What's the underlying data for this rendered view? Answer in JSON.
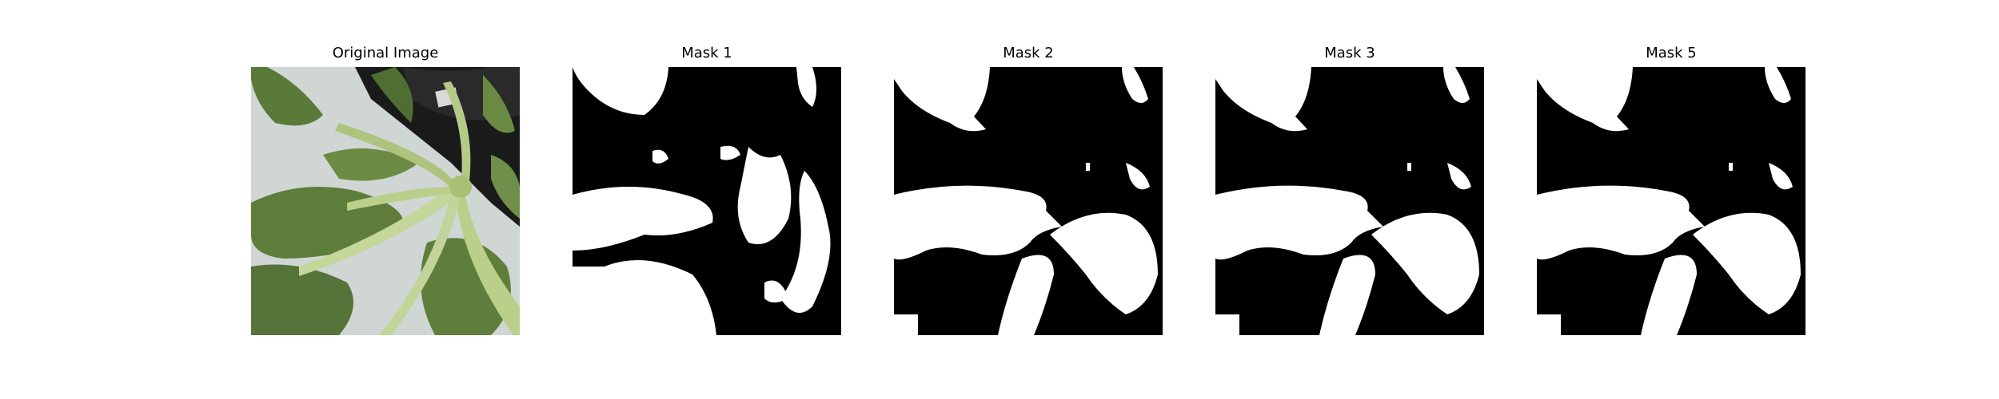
{
  "panels": [
    {
      "title": "Original Image",
      "kind": "photo"
    },
    {
      "title": "Mask 1",
      "kind": "mask"
    },
    {
      "title": "Mask 2",
      "kind": "mask"
    },
    {
      "title": "Mask 3",
      "kind": "mask"
    },
    {
      "title": "Mask 5",
      "kind": "mask"
    }
  ],
  "colors": {
    "background": "#ffffff",
    "mask_background": "#000000",
    "mask_foreground": "#ffffff",
    "leaf": "#5f7d3a",
    "stem": "#b9cf8a",
    "wall": "#cfd6d3",
    "pot": "#1a1a1a"
  }
}
